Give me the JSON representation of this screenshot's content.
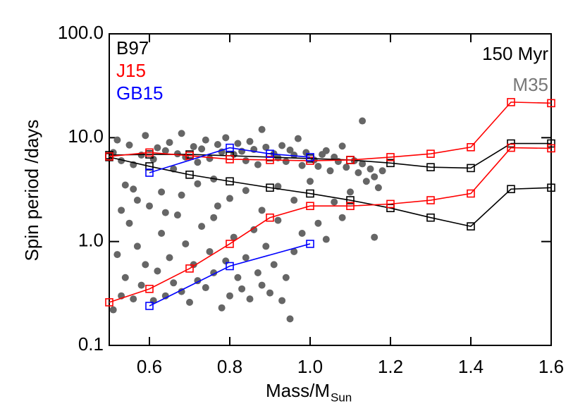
{
  "chart_data": {
    "type": "line",
    "annotation": "150 Myr",
    "x_label": "Mass/M",
    "x_label_sub": "Sun",
    "y_label": "Spin period /days",
    "xlim": [
      0.5,
      1.6
    ],
    "ylim": [
      0.1,
      100
    ],
    "log_y": true,
    "xticks": [
      0.6,
      0.8,
      {
        "value": 1,
        "label": "1.0"
      },
      1.2,
      1.4,
      1.6
    ],
    "yticks": [
      {
        "value": 0.1,
        "label": "0.1"
      },
      {
        "value": 1,
        "label": "1.0"
      },
      {
        "value": 10,
        "label": "10.0"
      },
      {
        "value": 100,
        "label": "100.0"
      }
    ],
    "series": [
      {
        "name": "B97",
        "color": "#000000",
        "lines": [
          {
            "x": [
              0.5,
              0.6,
              0.7,
              0.8,
              0.9,
              1.0,
              1.1,
              1.2,
              1.3,
              1.4,
              1.5,
              1.6
            ],
            "values": [
              6.8,
              6.9,
              6.9,
              6.7,
              6.5,
              6.3,
              6.1,
              5.7,
              5.2,
              5.1,
              8.8,
              8.8
            ]
          },
          {
            "x": [
              0.5,
              0.6,
              0.7,
              0.8,
              0.9,
              1.0,
              1.1,
              1.2,
              1.3,
              1.4,
              1.5,
              1.6
            ],
            "values": [
              6.5,
              5.3,
              4.4,
              3.8,
              3.3,
              2.9,
              2.5,
              2.1,
              1.7,
              1.4,
              3.2,
              3.3
            ]
          }
        ]
      },
      {
        "name": "J15",
        "color": "#ff0000",
        "lines": [
          {
            "x": [
              0.5,
              0.6,
              0.7,
              0.8,
              0.9,
              1.0,
              1.1,
              1.2,
              1.3,
              1.4,
              1.5,
              1.6
            ],
            "values": [
              6.6,
              7.2,
              6.7,
              6.2,
              6.1,
              6.0,
              6.1,
              6.5,
              7.0,
              8.1,
              22,
              21.5
            ]
          },
          {
            "x": [
              0.5,
              0.6,
              0.7,
              0.8,
              0.9,
              1.0,
              1.1,
              1.2,
              1.3,
              1.4,
              1.5,
              1.6
            ],
            "values": [
              0.26,
              0.35,
              0.55,
              0.95,
              1.7,
              2.2,
              2.2,
              2.3,
              2.5,
              2.9,
              8.0,
              7.9
            ]
          }
        ]
      },
      {
        "name": "GB15",
        "color": "#0000ff",
        "lines": [
          {
            "x": [
              0.6,
              0.8,
              0.9,
              1.0
            ],
            "values": [
              4.6,
              8.0,
              7.0,
              6.5
            ]
          },
          {
            "x": [
              0.6,
              0.8,
              1.0
            ],
            "values": [
              0.24,
              0.58,
              0.95
            ]
          }
        ]
      }
    ],
    "scatter": {
      "name": "M35",
      "color": "#666666",
      "x": [
        0.51,
        0.52,
        0.53,
        0.54,
        0.55,
        0.56,
        0.57,
        0.58,
        0.59,
        0.61,
        0.62,
        0.63,
        0.64,
        0.65,
        0.66,
        0.67,
        0.68,
        0.69,
        0.71,
        0.72,
        0.73,
        0.74,
        0.75,
        0.76,
        0.77,
        0.78,
        0.79,
        0.81,
        0.82,
        0.83,
        0.84,
        0.85,
        0.86,
        0.87,
        0.88,
        0.89,
        0.91,
        0.92,
        0.93,
        0.94,
        0.95,
        0.96,
        0.97,
        0.98,
        0.99,
        1.01,
        1.02,
        1.03,
        1.04,
        1.05,
        1.06,
        1.07,
        1.08,
        1.09,
        1.11,
        1.12,
        1.13,
        1.14,
        1.15,
        1.16,
        1.17,
        1.18,
        1.13,
        0.51,
        0.52,
        0.53,
        0.54,
        0.55,
        0.56,
        0.57,
        0.58,
        0.59,
        0.61,
        0.62,
        0.63,
        0.64,
        0.65,
        0.66,
        0.67,
        0.68,
        0.69,
        0.7,
        0.71,
        0.72,
        0.73,
        0.74,
        0.75,
        0.76,
        0.77,
        0.78,
        0.79,
        0.8,
        0.81,
        0.82,
        0.83,
        0.84,
        0.85,
        0.86,
        0.87,
        0.88,
        0.89,
        0.9,
        0.91,
        0.92,
        0.93,
        0.95,
        0.94,
        0.96,
        0.98,
        1.02,
        1.04,
        1.06,
        1.08,
        1.16,
        0.53,
        0.56,
        0.6,
        0.64,
        0.68,
        0.72,
        0.76,
        0.8,
        0.84,
        0.88,
        0.92,
        0.96,
        1.0,
        1.1
      ],
      "values": [
        7.2,
        9.5,
        6.0,
        3.5,
        8.5,
        5.5,
        2.5,
        6.8,
        10.5,
        6.2,
        8.0,
        3.0,
        7.5,
        9.0,
        5.0,
        7.0,
        11.0,
        6.5,
        8.2,
        5.8,
        7.8,
        9.5,
        6.3,
        4.0,
        8.6,
        7.3,
        10.0,
        6.9,
        8.8,
        7.4,
        6.0,
        9.2,
        7.7,
        5.5,
        12.0,
        8.1,
        7.0,
        6.4,
        8.4,
        5.9,
        7.6,
        6.8,
        9.8,
        5.4,
        7.2,
        6.1,
        5.3,
        6.9,
        7.5,
        4.8,
        6.5,
        5.9,
        8.3,
        5.2,
        6.0,
        4.6,
        5.6,
        3.8,
        5.0,
        4.2,
        3.3,
        4.8,
        14.5,
        0.22,
        0.75,
        0.3,
        0.45,
        1.5,
        0.28,
        0.9,
        0.38,
        0.6,
        0.27,
        0.52,
        1.2,
        0.3,
        0.7,
        0.4,
        1.8,
        0.33,
        0.95,
        0.26,
        0.6,
        0.42,
        1.4,
        0.36,
        0.8,
        0.5,
        2.2,
        0.23,
        0.65,
        0.3,
        1.1,
        0.45,
        0.35,
        0.7,
        0.28,
        1.3,
        0.5,
        0.38,
        0.9,
        0.32,
        0.6,
        1.6,
        0.27,
        0.18,
        0.45,
        0.8,
        1.2,
        1.5,
        1.05,
        2.4,
        1.7,
        1.1,
        2.0,
        3.2,
        2.2,
        1.9,
        2.8,
        3.6,
        1.7,
        2.6,
        3.1,
        2.0,
        3.4,
        2.5,
        3.8,
        3.0
      ]
    }
  }
}
